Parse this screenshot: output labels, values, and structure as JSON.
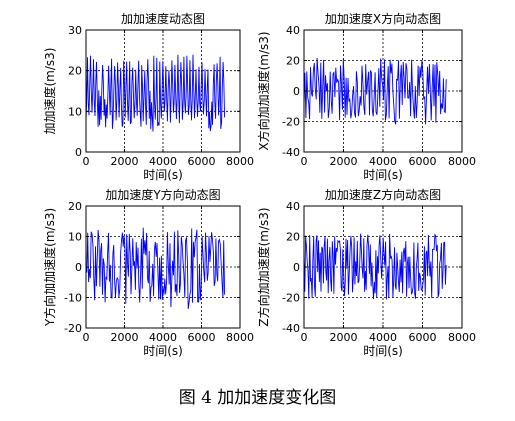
{
  "figure_caption": "图 4  加加速度变化图",
  "chart_data": [
    {
      "type": "line",
      "title": "加加速度动态图",
      "xlabel": "时间(s)",
      "ylabel": "加加速度(m/s3)",
      "xlim": [
        0,
        8000
      ],
      "ylim": [
        0,
        30
      ],
      "xticks": [
        0,
        2000,
        4000,
        6000,
        8000
      ],
      "yticks": [
        0,
        10,
        20,
        30
      ],
      "grid": true,
      "line_color": "#0000ff",
      "series": [
        {
          "x_range": [
            0,
            7200
          ],
          "oscillation_cycles": 46,
          "min": 5,
          "max": 24,
          "values": []
        }
      ]
    },
    {
      "type": "line",
      "title": "加加速度X方向动态图",
      "xlabel": "时间(s)",
      "ylabel": "X方向加加速度(m/s3)",
      "xlim": [
        0,
        8000
      ],
      "ylim": [
        -40,
        40
      ],
      "xticks": [
        0,
        2000,
        4000,
        6000,
        8000
      ],
      "yticks": [
        -40,
        -20,
        0,
        20,
        40
      ],
      "grid": true,
      "line_color": "#0000ff",
      "series": [
        {
          "x_range": [
            0,
            7200
          ],
          "oscillation_cycles": 38,
          "min": -22,
          "max": 22,
          "values": []
        }
      ]
    },
    {
      "type": "line",
      "title": "加加速度Y方向动态图",
      "xlabel": "时间(s)",
      "ylabel": "Y方向加加速度(m/s3)",
      "xlim": [
        0,
        8000
      ],
      "ylim": [
        -20,
        20
      ],
      "xticks": [
        0,
        2000,
        4000,
        6000,
        8000
      ],
      "yticks": [
        -20,
        -10,
        0,
        10,
        20
      ],
      "grid": true,
      "line_color": "#0000ff",
      "series": [
        {
          "x_range": [
            0,
            7200
          ],
          "oscillation_cycles": 40,
          "min": -14,
          "max": 13,
          "values": []
        }
      ]
    },
    {
      "type": "line",
      "title": "加加速度Z方向动态图",
      "xlabel": "时间(s)",
      "ylabel": "Z方向加加速度(m/s3)",
      "xlim": [
        0,
        8000
      ],
      "ylim": [
        -40,
        40
      ],
      "xticks": [
        0,
        2000,
        4000,
        6000,
        8000
      ],
      "yticks": [
        -40,
        -20,
        0,
        20,
        40
      ],
      "grid": true,
      "line_color": "#0000ff",
      "series": [
        {
          "x_range": [
            0,
            7200
          ],
          "oscillation_cycles": 44,
          "min": -22,
          "max": 22,
          "values": []
        }
      ]
    }
  ]
}
